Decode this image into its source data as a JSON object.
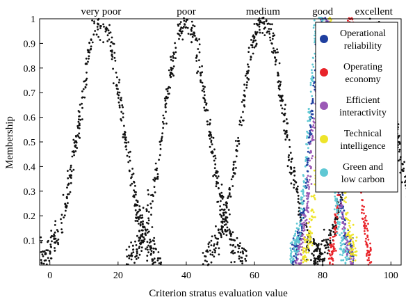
{
  "chart_data": {
    "type": "scatter",
    "xlabel": "Criterion stratus evaluation value",
    "ylabel": "Membership",
    "xlim": [
      -3,
      103
    ],
    "ylim": [
      0,
      1
    ],
    "x_ticks": [
      0,
      20,
      40,
      60,
      80,
      100
    ],
    "y_ticks": [
      0.1,
      0.2,
      0.3,
      0.4,
      0.5,
      0.6,
      0.7,
      0.8,
      0.9,
      1
    ],
    "grid": false,
    "legend_position": "top-right",
    "grades": [
      {
        "label": "very poor",
        "center": 15
      },
      {
        "label": "poor",
        "center": 40
      },
      {
        "label": "medium",
        "center": 62.5
      },
      {
        "label": "good",
        "center": 80
      },
      {
        "label": "excellent",
        "center": 95
      }
    ],
    "series": [
      {
        "name": "Operational reliability",
        "color": "#1f3f9f",
        "center": 80,
        "sigma": 3.2
      },
      {
        "name": "Operating economy",
        "color": "#e8242a",
        "center": 88,
        "sigma": 2.2
      },
      {
        "name": "Efficient interactivity",
        "color": "#9b59b6",
        "center": 80.5,
        "sigma": 3.0
      },
      {
        "name": "Technical intelligence",
        "color": "#eee42a",
        "center": 82,
        "sigma": 2.8
      },
      {
        "name": "Green and low carbon",
        "color": "#5fc8d4",
        "center": 79,
        "sigma": 3.0
      }
    ],
    "grade_series": {
      "color": "#111111",
      "centers": [
        15,
        40,
        62.5,
        95
      ],
      "sigma": 6.2
    }
  }
}
